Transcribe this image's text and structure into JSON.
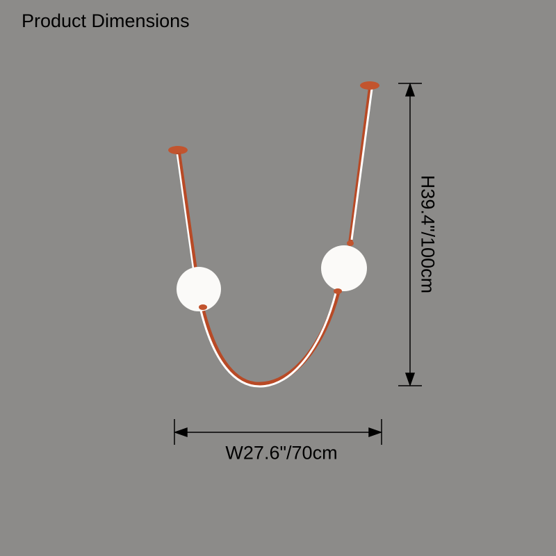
{
  "title": "Product Dimensions",
  "dimensions": {
    "height": "H39.4\"/100cm",
    "width": "W27.6\"/70cm"
  },
  "colors": {
    "background": "#8c8b89",
    "frame": "#c2542e",
    "light": "#ffffff"
  }
}
